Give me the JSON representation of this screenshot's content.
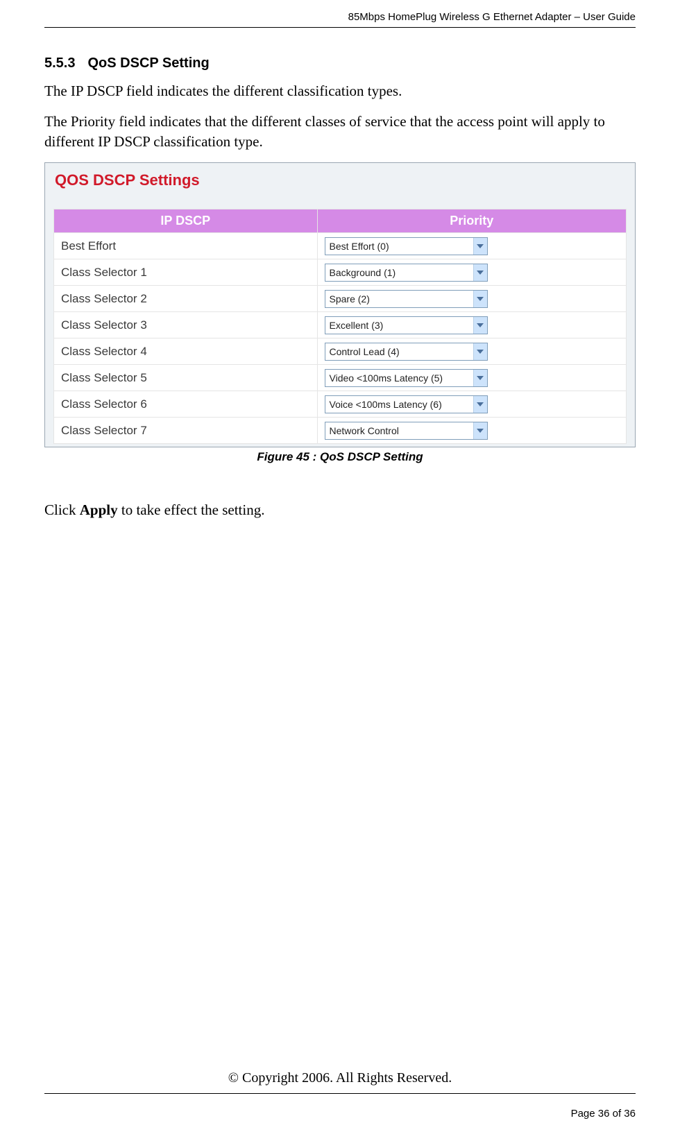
{
  "header": {
    "doc_title": "85Mbps HomePlug Wireless G Ethernet Adapter – User Guide"
  },
  "section": {
    "number": "5.5.3",
    "title": "QoS DSCP Setting"
  },
  "paragraphs": {
    "p1": "The IP DSCP field indicates the different classification types.",
    "p2": "The Priority field indicates that the different classes of service that the access point will apply to different IP DSCP classification type."
  },
  "figure": {
    "panel_title": "QOS DSCP Settings",
    "caption": "Figure 45 : QoS DSCP Setting",
    "table": {
      "header_bg": "#d58ae6",
      "header_fg": "#ffffff",
      "columns": [
        "IP DSCP",
        "Priority"
      ],
      "rows": [
        {
          "label": "Best Effort",
          "value": "Best Effort (0)"
        },
        {
          "label": "Class Selector 1",
          "value": "Background (1)"
        },
        {
          "label": "Class Selector 2",
          "value": "Spare (2)"
        },
        {
          "label": "Class Selector 3",
          "value": "Excellent (3)"
        },
        {
          "label": "Class Selector 4",
          "value": "Control Lead (4)"
        },
        {
          "label": "Class Selector 5",
          "value": "Video <100ms Latency (5)"
        },
        {
          "label": "Class Selector 6",
          "value": "Voice <100ms Latency (6)"
        },
        {
          "label": "Class Selector 7",
          "value": "Network Control"
        }
      ]
    }
  },
  "apply_line": {
    "pre": "Click ",
    "bold": "Apply",
    "post": " to take effect the setting."
  },
  "footer": {
    "copyright": "© Copyright 2006.  All Rights Reserved.",
    "page": "Page 36 of 36"
  },
  "style": {
    "dropdown_border": "#7f9db9",
    "dropdown_arrow_bg": "#cde3fb",
    "panel_bg": "#eef2f5",
    "panel_border": "#9aa6b2",
    "title_red": "#d11a2a"
  }
}
